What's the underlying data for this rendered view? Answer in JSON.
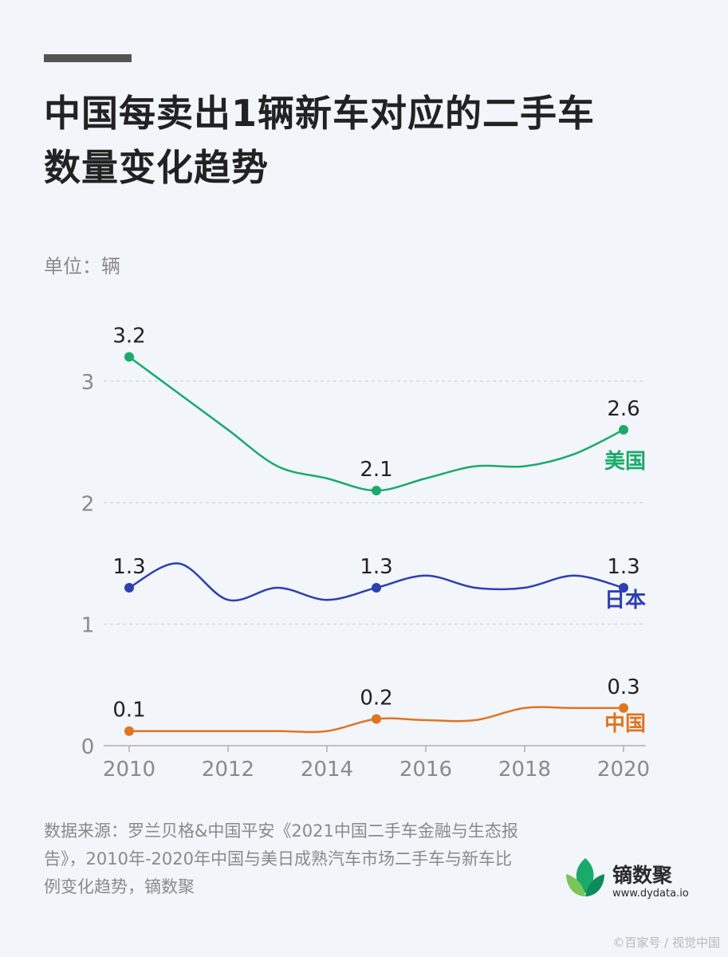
{
  "header": {
    "title": "中国每卖出1辆新车对应的二手车\n数量变化趋势",
    "unit": "单位：辆"
  },
  "chart_data": {
    "type": "line",
    "title": "中国每卖出1辆新车对应的二手车数量变化趋势",
    "ylabel": "单位：辆",
    "xlabel": "",
    "x": [
      2010,
      2011,
      2012,
      2013,
      2014,
      2015,
      2016,
      2017,
      2018,
      2019,
      2020
    ],
    "x_ticks": [
      "2010",
      "2012",
      "2014",
      "2016",
      "2018",
      "2020"
    ],
    "y_ticks": [
      "0",
      "1",
      "2",
      "3"
    ],
    "ylim": [
      0,
      3.4
    ],
    "grid": "horizontal dashed",
    "legend": "series labels at right end of lines",
    "series": [
      {
        "name": "美国",
        "color": "#1aaa6b",
        "values": [
          3.2,
          2.9,
          2.6,
          2.3,
          2.2,
          2.1,
          2.2,
          2.3,
          2.3,
          2.4,
          2.6
        ],
        "labeled_points": [
          {
            "x": 2010,
            "label": "3.2"
          },
          {
            "x": 2015,
            "label": "2.1"
          },
          {
            "x": 2020,
            "label": "2.6"
          }
        ]
      },
      {
        "name": "日本",
        "color": "#2d3fb2",
        "values": [
          1.3,
          1.5,
          1.2,
          1.3,
          1.2,
          1.3,
          1.4,
          1.3,
          1.3,
          1.4,
          1.3
        ],
        "labeled_points": [
          {
            "x": 2010,
            "label": "1.3"
          },
          {
            "x": 2015,
            "label": "1.3"
          },
          {
            "x": 2020,
            "label": "1.3"
          }
        ]
      },
      {
        "name": "中国",
        "color": "#e07520",
        "values": [
          0.12,
          0.12,
          0.12,
          0.12,
          0.12,
          0.22,
          0.21,
          0.21,
          0.31,
          0.31,
          0.31
        ],
        "labeled_points": [
          {
            "x": 2010,
            "label": "0.1"
          },
          {
            "x": 2015,
            "label": "0.2"
          },
          {
            "x": 2020,
            "label": "0.3"
          }
        ]
      }
    ],
    "axis_color": "#b0b0b0",
    "tick_color": "#8a8a8a"
  },
  "footer": {
    "source_text": "数据来源：罗兰贝格&中国平安《2021中国二手车金融与生态报告》，2010年-2020年中国与美日成熟汽车市场二手车与新车比例变化趋势，镝数聚",
    "logo_name": "镝数聚",
    "logo_url": "www.dydata.io",
    "logo_colors": [
      "#1aaa6b",
      "#78c65a",
      "#0e8a5b"
    ],
    "watermark": "©百家号 / 视觉中国"
  }
}
